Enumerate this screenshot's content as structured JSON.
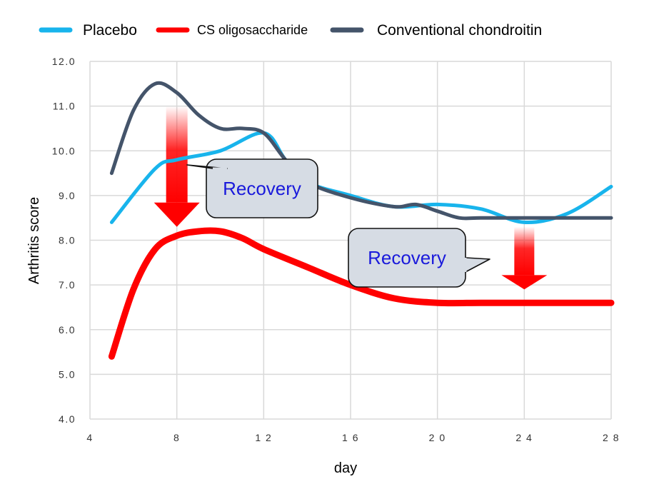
{
  "chart_data": {
    "type": "line",
    "title": "",
    "xlabel": "day",
    "ylabel": "Arthritis score",
    "xlim": [
      4,
      28
    ],
    "ylim": [
      4.0,
      12.0
    ],
    "x_ticks": [
      "4",
      "8",
      "12",
      "16",
      "20",
      "24",
      "28"
    ],
    "y_ticks": [
      "4.0",
      "5.0",
      "6.0",
      "7.0",
      "8.0",
      "9.0",
      "10.0",
      "11.0",
      "12.0"
    ],
    "grid": true,
    "legend_position": "top",
    "series": [
      {
        "name": "Placebo",
        "color": "#18b4ec",
        "x": [
          5,
          7,
          8,
          10,
          12,
          13,
          14,
          16,
          18,
          20,
          22,
          24,
          26,
          28
        ],
        "y": [
          8.4,
          9.6,
          9.8,
          10.0,
          10.4,
          9.8,
          9.3,
          9.0,
          8.75,
          8.8,
          8.7,
          8.4,
          8.6,
          9.2
        ]
      },
      {
        "name": "CS oligosaccharide",
        "color": "#ff0000",
        "x": [
          5,
          6,
          7,
          8,
          9,
          10,
          11,
          12,
          14,
          16,
          18,
          20,
          22,
          24,
          26,
          28
        ],
        "y": [
          5.4,
          6.9,
          7.8,
          8.1,
          8.2,
          8.2,
          8.05,
          7.8,
          7.4,
          7.0,
          6.7,
          6.6,
          6.6,
          6.6,
          6.6,
          6.6
        ]
      },
      {
        "name": "Conventional chondroitin",
        "color": "#44546a",
        "x": [
          5,
          6,
          7,
          8,
          9,
          10,
          11,
          12,
          13,
          14,
          16,
          18,
          19,
          20,
          21,
          22,
          24,
          26,
          28
        ],
        "y": [
          9.5,
          10.9,
          11.5,
          11.3,
          10.8,
          10.5,
          10.5,
          10.4,
          9.8,
          9.3,
          8.95,
          8.75,
          8.8,
          8.65,
          8.5,
          8.5,
          8.5,
          8.5,
          8.5
        ]
      }
    ],
    "annotations": [
      {
        "text": "Recovery",
        "at_x": 8,
        "from_y": 11.0,
        "to_y": 8.3
      },
      {
        "text": "Recovery",
        "at_x": 24,
        "from_y": 8.3,
        "to_y": 6.9
      }
    ]
  }
}
